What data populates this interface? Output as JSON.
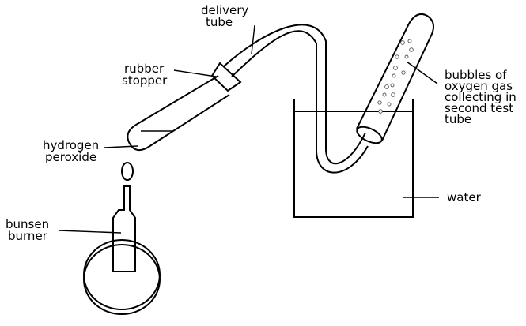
{
  "labels": {
    "delivery_tube": [
      "delivery",
      "tube"
    ],
    "rubber_stopper": [
      "rubber",
      "stopper"
    ],
    "hydrogen_peroxide": [
      "hydrogen",
      "peroxide"
    ],
    "bunsen_burner": [
      "bunsen",
      "burner"
    ],
    "bubbles": [
      "bubbles of",
      "oxygen gas",
      "collecting in",
      "second test",
      "tube"
    ],
    "water": "water"
  }
}
